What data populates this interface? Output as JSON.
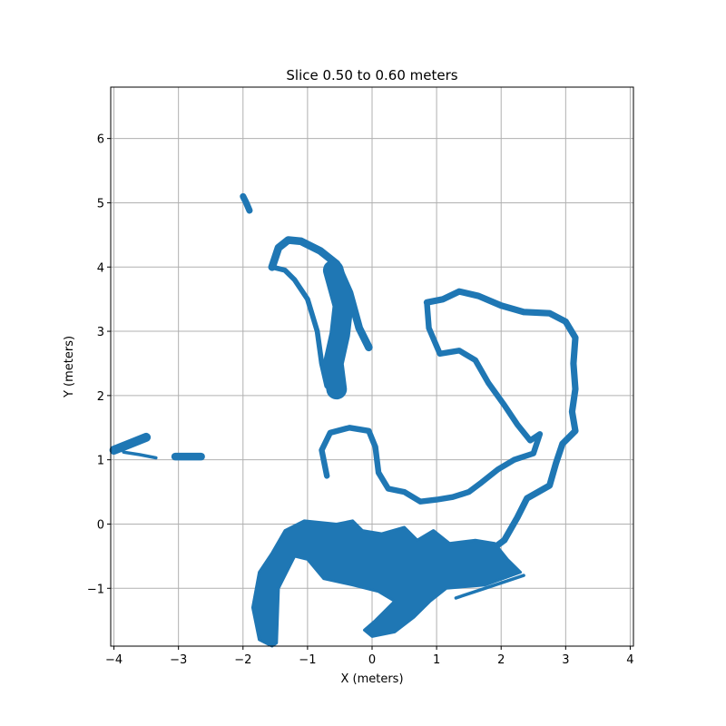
{
  "chart_data": {
    "type": "scatter",
    "title": "Slice 0.50 to 0.60 meters",
    "xlabel": "X (meters)",
    "ylabel": "Y (meters)",
    "xlim": [
      -4.05,
      4.05
    ],
    "ylim": [
      -1.9,
      6.8
    ],
    "xticks": [
      -4,
      -3,
      -2,
      -1,
      0,
      1,
      2,
      3,
      4
    ],
    "yticks": [
      -1,
      0,
      1,
      2,
      3,
      4,
      5,
      6
    ],
    "xtick_labels": [
      "−4",
      "−3",
      "−2",
      "−1",
      "0",
      "1",
      "2",
      "3",
      "4"
    ],
    "ytick_labels": [
      "−1",
      "0",
      "1",
      "2",
      "3",
      "4",
      "5",
      "6"
    ],
    "grid": true,
    "color": "#1f77b4",
    "series": [
      {
        "kind": "strip",
        "width": 0.1,
        "points": [
          [
            -2.0,
            5.1
          ],
          [
            -1.95,
            5.0
          ],
          [
            -1.9,
            4.88
          ]
        ]
      },
      {
        "kind": "strip",
        "width": 0.12,
        "points": [
          [
            -1.55,
            4.0
          ],
          [
            -1.45,
            4.3
          ],
          [
            -1.3,
            4.42
          ],
          [
            -1.1,
            4.4
          ],
          [
            -0.8,
            4.25
          ],
          [
            -0.55,
            4.05
          ],
          [
            -0.35,
            3.6
          ],
          [
            -0.2,
            3.05
          ],
          [
            -0.05,
            2.75
          ]
        ]
      },
      {
        "kind": "strip",
        "width": 0.08,
        "points": [
          [
            -1.55,
            4.0
          ],
          [
            -1.35,
            3.95
          ],
          [
            -1.2,
            3.8
          ],
          [
            -1.0,
            3.5
          ],
          [
            -0.85,
            3.0
          ],
          [
            -0.78,
            2.5
          ],
          [
            -0.7,
            2.15
          ],
          [
            -0.6,
            2.05
          ]
        ]
      },
      {
        "kind": "strip",
        "width": 0.32,
        "points": [
          [
            -0.6,
            3.95
          ],
          [
            -0.45,
            3.4
          ],
          [
            -0.5,
            2.95
          ],
          [
            -0.6,
            2.5
          ],
          [
            -0.55,
            2.1
          ]
        ]
      },
      {
        "kind": "strip",
        "width": 0.14,
        "points": [
          [
            -4.0,
            1.15
          ],
          [
            -3.75,
            1.25
          ],
          [
            -3.5,
            1.35
          ]
        ]
      },
      {
        "kind": "strip",
        "width": 0.05,
        "points": [
          [
            -3.85,
            1.12
          ],
          [
            -3.6,
            1.08
          ],
          [
            -3.35,
            1.03
          ]
        ]
      },
      {
        "kind": "strip",
        "width": 0.12,
        "points": [
          [
            -3.05,
            1.05
          ],
          [
            -2.85,
            1.05
          ],
          [
            -2.65,
            1.05
          ]
        ]
      },
      {
        "kind": "strip",
        "width": 0.09,
        "points": [
          [
            0.85,
            3.45
          ],
          [
            0.88,
            3.05
          ],
          [
            1.05,
            2.65
          ],
          [
            1.35,
            2.7
          ],
          [
            1.6,
            2.55
          ],
          [
            1.8,
            2.2
          ],
          [
            2.05,
            1.85
          ],
          [
            2.25,
            1.55
          ],
          [
            2.45,
            1.3
          ],
          [
            2.6,
            1.4
          ],
          [
            2.5,
            1.1
          ],
          [
            2.2,
            1.0
          ],
          [
            1.95,
            0.85
          ],
          [
            1.7,
            0.65
          ],
          [
            1.5,
            0.5
          ],
          [
            1.25,
            0.42
          ],
          [
            1.0,
            0.38
          ],
          [
            0.75,
            0.35
          ],
          [
            0.5,
            0.5
          ],
          [
            0.25,
            0.55
          ],
          [
            0.1,
            0.8
          ],
          [
            0.05,
            1.2
          ],
          [
            -0.05,
            1.45
          ],
          [
            -0.35,
            1.5
          ],
          [
            -0.65,
            1.42
          ],
          [
            -0.78,
            1.15
          ],
          [
            -0.7,
            0.75
          ]
        ]
      },
      {
        "kind": "strip",
        "width": 0.1,
        "points": [
          [
            0.85,
            3.45
          ],
          [
            1.1,
            3.5
          ],
          [
            1.35,
            3.62
          ],
          [
            1.65,
            3.55
          ],
          [
            2.0,
            3.4
          ],
          [
            2.35,
            3.3
          ],
          [
            2.75,
            3.28
          ],
          [
            3.0,
            3.15
          ],
          [
            3.15,
            2.9
          ],
          [
            3.12,
            2.5
          ],
          [
            3.15,
            2.1
          ],
          [
            3.1,
            1.75
          ],
          [
            3.15,
            1.45
          ],
          [
            2.95,
            1.25
          ],
          [
            2.85,
            0.95
          ],
          [
            2.75,
            0.6
          ],
          [
            2.4,
            0.4
          ],
          [
            2.25,
            0.1
          ],
          [
            2.05,
            -0.25
          ],
          [
            1.65,
            -0.55
          ],
          [
            1.35,
            -0.9
          ]
        ]
      },
      {
        "kind": "strip",
        "width": 0.05,
        "points": [
          [
            1.3,
            -1.15
          ],
          [
            1.75,
            -1.0
          ],
          [
            2.35,
            -0.8
          ]
        ]
      },
      {
        "kind": "area",
        "points": [
          [
            -1.75,
            -1.8
          ],
          [
            -1.85,
            -1.3
          ],
          [
            -1.75,
            -0.75
          ],
          [
            -1.55,
            -0.45
          ],
          [
            -1.35,
            -0.1
          ],
          [
            -1.05,
            0.05
          ],
          [
            -0.55,
            0.0
          ],
          [
            -0.3,
            0.05
          ],
          [
            -0.15,
            -0.1
          ],
          [
            0.15,
            -0.15
          ],
          [
            0.5,
            -0.05
          ],
          [
            0.7,
            -0.25
          ],
          [
            0.95,
            -0.1
          ],
          [
            1.2,
            -0.3
          ],
          [
            1.6,
            -0.25
          ],
          [
            1.9,
            -0.3
          ],
          [
            2.1,
            -0.55
          ],
          [
            2.3,
            -0.75
          ],
          [
            1.75,
            -0.95
          ],
          [
            1.15,
            -1.0
          ],
          [
            0.9,
            -1.2
          ],
          [
            0.65,
            -1.45
          ],
          [
            0.35,
            -1.68
          ],
          [
            0.0,
            -1.75
          ],
          [
            -0.12,
            -1.65
          ],
          [
            0.05,
            -1.5
          ],
          [
            0.35,
            -1.2
          ],
          [
            0.1,
            -1.05
          ],
          [
            -0.3,
            -0.95
          ],
          [
            -0.75,
            -0.85
          ],
          [
            -1.0,
            -0.55
          ],
          [
            -1.2,
            -0.5
          ],
          [
            -1.45,
            -1.0
          ],
          [
            -1.48,
            -1.85
          ],
          [
            -1.55,
            -1.9
          ]
        ]
      }
    ]
  }
}
